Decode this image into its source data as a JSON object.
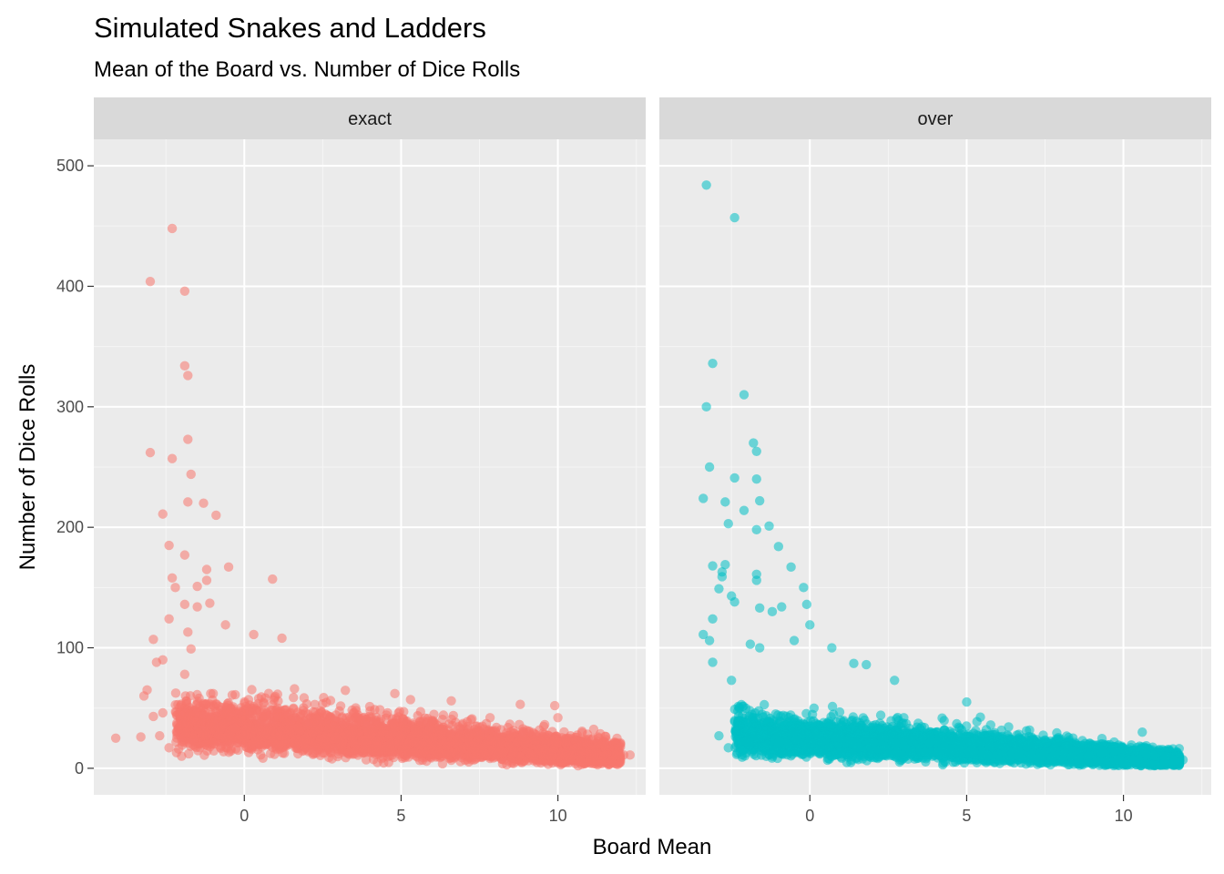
{
  "chart_data": {
    "type": "scatter",
    "title": "Simulated Snakes and Ladders",
    "subtitle": "Mean of the Board vs. Number of Dice Rolls",
    "xlabel": "Board Mean",
    "ylabel": "Number of Dice Rolls",
    "xlim": [
      -4.8,
      12.8
    ],
    "ylim": [
      -22,
      522
    ],
    "x_ticks": [
      0,
      5,
      10
    ],
    "y_ticks": [
      0,
      100,
      200,
      300,
      400,
      500
    ],
    "grid": true,
    "legend": "none",
    "point_alpha": 0.55,
    "panels": [
      {
        "name": "exact",
        "color": "#F8766D",
        "density": {
          "x_min": -2.2,
          "x_max": 12.0,
          "n_points": 5000,
          "core": "dense band from x≈-2 to x≈11, centred around y≈30 at x≈0 falling to y≈10 at x≈11"
        },
        "points": [
          {
            "x": -2.3,
            "y": 448
          },
          {
            "x": -3.0,
            "y": 404
          },
          {
            "x": -1.9,
            "y": 396
          },
          {
            "x": -1.9,
            "y": 334
          },
          {
            "x": -1.8,
            "y": 326
          },
          {
            "x": -1.8,
            "y": 273
          },
          {
            "x": -3.0,
            "y": 262
          },
          {
            "x": -2.3,
            "y": 257
          },
          {
            "x": -1.7,
            "y": 244
          },
          {
            "x": -1.8,
            "y": 221
          },
          {
            "x": -1.3,
            "y": 220
          },
          {
            "x": -2.6,
            "y": 211
          },
          {
            "x": -0.9,
            "y": 210
          },
          {
            "x": -2.4,
            "y": 185
          },
          {
            "x": -1.9,
            "y": 177
          },
          {
            "x": -0.5,
            "y": 167
          },
          {
            "x": -1.2,
            "y": 165
          },
          {
            "x": -2.3,
            "y": 158
          },
          {
            "x": 0.9,
            "y": 157
          },
          {
            "x": -1.2,
            "y": 156
          },
          {
            "x": -1.5,
            "y": 151
          },
          {
            "x": -2.2,
            "y": 150
          },
          {
            "x": -1.9,
            "y": 136
          },
          {
            "x": -1.1,
            "y": 137
          },
          {
            "x": -1.5,
            "y": 134
          },
          {
            "x": -2.4,
            "y": 124
          },
          {
            "x": -1.8,
            "y": 113
          },
          {
            "x": -2.9,
            "y": 107
          },
          {
            "x": 1.2,
            "y": 108
          },
          {
            "x": 0.3,
            "y": 111
          },
          {
            "x": -0.6,
            "y": 119
          },
          {
            "x": -1.7,
            "y": 99
          },
          {
            "x": -2.6,
            "y": 90
          },
          {
            "x": -2.8,
            "y": 88
          },
          {
            "x": -1.9,
            "y": 78
          },
          {
            "x": -3.1,
            "y": 65
          },
          {
            "x": -3.2,
            "y": 60
          },
          {
            "x": -2.6,
            "y": 46
          },
          {
            "x": -2.9,
            "y": 43
          },
          {
            "x": -2.7,
            "y": 27
          },
          {
            "x": -3.3,
            "y": 26
          },
          {
            "x": -4.1,
            "y": 25
          },
          {
            "x": -2.4,
            "y": 17
          },
          {
            "x": -2.0,
            "y": 10
          },
          {
            "x": 4.8,
            "y": 62
          },
          {
            "x": 1.6,
            "y": 66
          },
          {
            "x": 5.3,
            "y": 57
          },
          {
            "x": 6.6,
            "y": 56
          },
          {
            "x": 8.8,
            "y": 53
          },
          {
            "x": 9.9,
            "y": 52
          },
          {
            "x": 10.0,
            "y": 42
          },
          {
            "x": 10.9,
            "y": 22
          },
          {
            "x": 11.5,
            "y": 18
          },
          {
            "x": 12.1,
            "y": 11
          },
          {
            "x": 12.3,
            "y": 11
          },
          {
            "x": 11.7,
            "y": 6
          }
        ]
      },
      {
        "name": "over",
        "color": "#00BFC4",
        "density": {
          "x_min": -2.4,
          "x_max": 11.8,
          "n_points": 5000,
          "core": "dense band from x≈-2.3 to x≈11, centred around y≈25 at x≈0 falling to y≈6 at x≈11"
        },
        "points": [
          {
            "x": -3.3,
            "y": 484
          },
          {
            "x": -2.4,
            "y": 457
          },
          {
            "x": -3.1,
            "y": 336
          },
          {
            "x": -2.1,
            "y": 310
          },
          {
            "x": -3.3,
            "y": 300
          },
          {
            "x": -1.8,
            "y": 270
          },
          {
            "x": -1.7,
            "y": 263
          },
          {
            "x": -3.2,
            "y": 250
          },
          {
            "x": -2.4,
            "y": 241
          },
          {
            "x": -1.7,
            "y": 240
          },
          {
            "x": -3.4,
            "y": 224
          },
          {
            "x": -1.6,
            "y": 222
          },
          {
            "x": -2.7,
            "y": 221
          },
          {
            "x": -2.1,
            "y": 214
          },
          {
            "x": -2.6,
            "y": 203
          },
          {
            "x": -1.3,
            "y": 201
          },
          {
            "x": -1.7,
            "y": 198
          },
          {
            "x": -1.0,
            "y": 184
          },
          {
            "x": -2.7,
            "y": 169
          },
          {
            "x": -3.1,
            "y": 168
          },
          {
            "x": -0.6,
            "y": 167
          },
          {
            "x": -2.8,
            "y": 163
          },
          {
            "x": -1.7,
            "y": 161
          },
          {
            "x": -2.8,
            "y": 159
          },
          {
            "x": -1.7,
            "y": 156
          },
          {
            "x": -0.2,
            "y": 150
          },
          {
            "x": -2.9,
            "y": 149
          },
          {
            "x": -2.5,
            "y": 143
          },
          {
            "x": -2.4,
            "y": 138
          },
          {
            "x": -0.1,
            "y": 136
          },
          {
            "x": -0.9,
            "y": 134
          },
          {
            "x": -1.6,
            "y": 133
          },
          {
            "x": -1.2,
            "y": 130
          },
          {
            "x": -3.1,
            "y": 124
          },
          {
            "x": 0.0,
            "y": 119
          },
          {
            "x": -3.4,
            "y": 111
          },
          {
            "x": -3.2,
            "y": 106
          },
          {
            "x": -0.5,
            "y": 106
          },
          {
            "x": -1.9,
            "y": 103
          },
          {
            "x": -1.6,
            "y": 100
          },
          {
            "x": 0.7,
            "y": 100
          },
          {
            "x": -3.1,
            "y": 88
          },
          {
            "x": 1.4,
            "y": 87
          },
          {
            "x": 1.8,
            "y": 86
          },
          {
            "x": -2.5,
            "y": 73
          },
          {
            "x": 2.7,
            "y": 73
          },
          {
            "x": 5.0,
            "y": 55
          },
          {
            "x": 10.6,
            "y": 30
          },
          {
            "x": -2.9,
            "y": 27
          },
          {
            "x": -2.6,
            "y": 17
          },
          {
            "x": 11.9,
            "y": 7
          },
          {
            "x": 11.3,
            "y": 4
          }
        ]
      }
    ]
  }
}
